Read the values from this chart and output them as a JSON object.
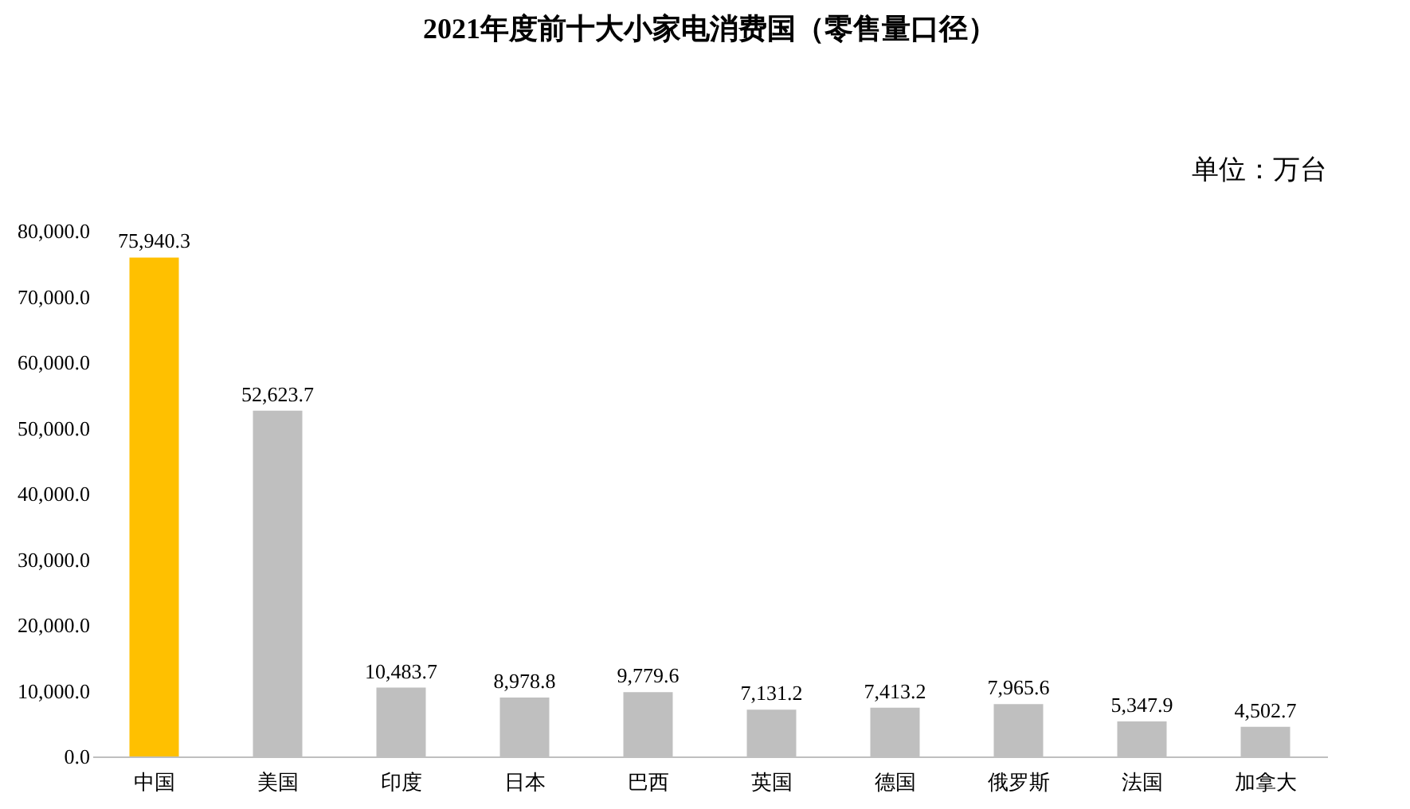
{
  "chart_data": {
    "type": "bar",
    "title": "2021年度前十大小家电消费国（零售量口径）",
    "annotations": [
      "单位：万台"
    ],
    "categories": [
      "中国",
      "美国",
      "印度",
      "日本",
      "巴西",
      "英国",
      "德国",
      "俄罗斯",
      "法国",
      "加拿大"
    ],
    "values": [
      75940.3,
      52623.7,
      10483.7,
      8978.8,
      9779.6,
      7131.2,
      7413.2,
      7965.6,
      5347.9,
      4502.7
    ],
    "colors": [
      "#ffc000",
      "#bfbfbf",
      "#bfbfbf",
      "#bfbfbf",
      "#bfbfbf",
      "#bfbfbf",
      "#bfbfbf",
      "#bfbfbf",
      "#bfbfbf",
      "#bfbfbf"
    ],
    "value_labels": [
      "75,940.3",
      "52,623.7",
      "10,483.7",
      "8,978.8",
      "9,779.6",
      "7,131.2",
      "7,413.2",
      "7,965.6",
      "5,347.9",
      "4,502.7"
    ],
    "ylim": [
      0,
      80000
    ],
    "yticks": [
      {
        "value": 0,
        "label": "0.0"
      },
      {
        "value": 10000,
        "label": "10,000.0"
      },
      {
        "value": 20000,
        "label": "20,000.0"
      },
      {
        "value": 30000,
        "label": "30,000.0"
      },
      {
        "value": 40000,
        "label": "40,000.0"
      },
      {
        "value": 50000,
        "label": "50,000.0"
      },
      {
        "value": 60000,
        "label": "60,000.0"
      },
      {
        "value": 70000,
        "label": "70,000.0"
      },
      {
        "value": 80000,
        "label": "80,000.0"
      }
    ],
    "grid": false
  }
}
